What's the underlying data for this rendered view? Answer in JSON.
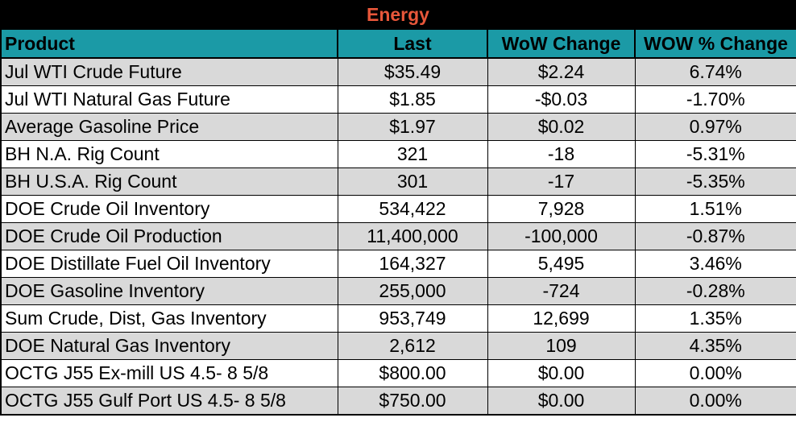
{
  "title": "Energy",
  "headers": [
    "Product",
    "Last",
    "WoW Change",
    "WOW % Change"
  ],
  "rows": [
    {
      "product": "Jul WTI Crude Future",
      "last": "$35.49",
      "wow": "$2.24",
      "pct": "6.74%"
    },
    {
      "product": "Jul WTI Natural Gas Future",
      "last": "$1.85",
      "wow": "-$0.03",
      "pct": "-1.70%"
    },
    {
      "product": "Average Gasoline Price",
      "last": "$1.97",
      "wow": "$0.02",
      "pct": "0.97%"
    },
    {
      "product": "BH N.A. Rig Count",
      "last": "321",
      "wow": "-18",
      "pct": "-5.31%"
    },
    {
      "product": "BH U.S.A. Rig Count",
      "last": "301",
      "wow": "-17",
      "pct": "-5.35%"
    },
    {
      "product": "DOE Crude Oil Inventory",
      "last": "534,422",
      "wow": "7,928",
      "pct": "1.51%"
    },
    {
      "product": "DOE Crude Oil Production",
      "last": "11,400,000",
      "wow": "-100,000",
      "pct": "-0.87%"
    },
    {
      "product": "DOE Distillate Fuel Oil Inventory",
      "last": "164,327",
      "wow": "5,495",
      "pct": "3.46%"
    },
    {
      "product": "DOE Gasoline Inventory",
      "last": "255,000",
      "wow": "-724",
      "pct": "-0.28%"
    },
    {
      "product": "Sum Crude, Dist, Gas Inventory",
      "last": "953,749",
      "wow": "12,699",
      "pct": "1.35%"
    },
    {
      "product": "DOE Natural Gas Inventory",
      "last": "2,612",
      "wow": "109",
      "pct": "4.35%"
    },
    {
      "product": "OCTG J55 Ex-mill US 4.5- 8 5/8",
      "last": "$800.00",
      "wow": "$0.00",
      "pct": "0.00%"
    },
    {
      "product": "OCTG J55 Gulf Port US 4.5- 8 5/8",
      "last": "$750.00",
      "wow": "$0.00",
      "pct": "0.00%"
    }
  ],
  "colors": {
    "title_bg": "#000000",
    "title_text": "#e8573a",
    "header_bg": "#1b9aa6",
    "shaded_row": "#d9d9d9",
    "plain_row": "#ffffff"
  }
}
